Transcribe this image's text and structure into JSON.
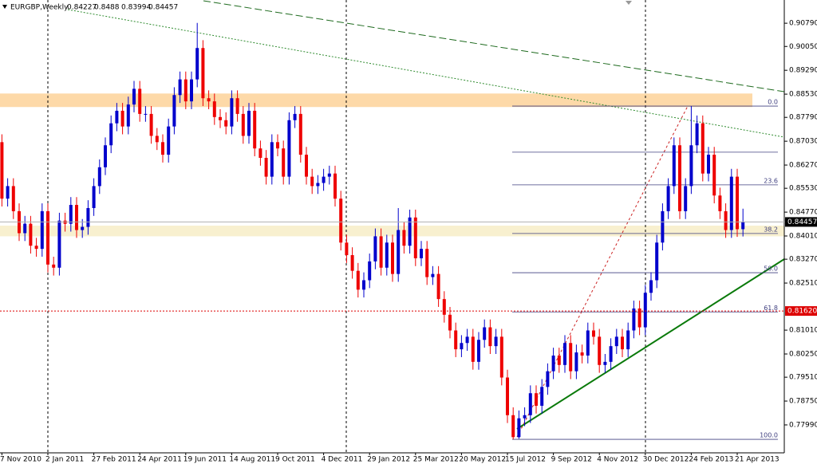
{
  "chart_data": {
    "type": "candlestick",
    "title": "EURGBP,Weekly",
    "categories": [
      "7 Nov 2010",
      null,
      null,
      null,
      null,
      null,
      null,
      null,
      "2 Jan 2011",
      null,
      null,
      null,
      null,
      null,
      null,
      null,
      "27 Feb 2011",
      null,
      null,
      null,
      null,
      null,
      null,
      null,
      "24 Apr 2011",
      null,
      null,
      null,
      null,
      null,
      null,
      null,
      "19 Jun 2011",
      null,
      null,
      null,
      null,
      null,
      null,
      null,
      "14 Aug 2011",
      null,
      null,
      null,
      null,
      null,
      null,
      null,
      "9 Oct 2011",
      null,
      null,
      null,
      null,
      null,
      null,
      null,
      "4 Dec 2011",
      null,
      null,
      null,
      null,
      null,
      null,
      null,
      "29 Jan 2012",
      null,
      null,
      null,
      null,
      null,
      null,
      null,
      "25 Mar 2012",
      null,
      null,
      null,
      null,
      null,
      null,
      null,
      "20 May 2012",
      null,
      null,
      null,
      null,
      null,
      null,
      null,
      "15 Jul 2012",
      null,
      null,
      null,
      null,
      null,
      null,
      null,
      "9 Sep 2012",
      null,
      null,
      null,
      null,
      null,
      null,
      null,
      "4 Nov 2012",
      null,
      null,
      null,
      null,
      null,
      null,
      null,
      "30 Dec 2012",
      null,
      null,
      null,
      null,
      null,
      null,
      null,
      "24 Feb 2013",
      null,
      null,
      null,
      null,
      null,
      null,
      null,
      "21 Apr 2013",
      null
    ],
    "open": [
      0.87,
      0.852,
      0.856,
      0.848,
      0.841,
      0.844,
      0.837,
      0.836,
      0.848,
      0.831,
      0.83,
      0.845,
      0.844,
      0.85,
      0.842,
      0.843,
      0.849,
      0.856,
      0.862,
      0.869,
      0.876,
      0.88,
      0.875,
      0.882,
      0.887,
      0.879,
      0.879,
      0.872,
      0.87,
      0.866,
      0.875,
      0.885,
      0.89,
      0.883,
      0.89,
      0.9,
      0.884,
      0.883,
      0.878,
      0.877,
      0.875,
      0.884,
      0.879,
      0.872,
      0.88,
      0.868,
      0.865,
      0.859,
      0.87,
      0.868,
      0.859,
      0.877,
      0.879,
      0.866,
      0.859,
      0.856,
      0.857,
      0.859,
      0.86,
      0.852,
      0.838,
      0.834,
      0.829,
      0.823,
      0.826,
      0.832,
      0.84,
      0.83,
      0.838,
      0.828,
      0.842,
      0.837,
      0.846,
      0.833,
      0.836,
      0.827,
      0.828,
      0.82,
      0.815,
      0.81,
      0.804,
      0.806,
      0.808,
      0.8,
      0.807,
      0.811,
      0.805,
      0.808,
      0.795,
      0.783,
      0.776,
      0.782,
      0.783,
      0.79,
      0.786,
      0.792,
      0.797,
      0.802,
      0.799,
      0.806,
      0.797,
      0.803,
      0.802,
      0.81,
      0.808,
      0.799,
      0.8,
      0.805,
      0.808,
      0.804,
      0.81,
      0.817,
      0.811,
      0.822,
      0.826,
      0.838,
      0.848,
      0.856,
      0.869,
      0.848,
      0.856,
      0.869,
      0.876,
      0.86,
      0.866,
      0.853,
      0.848,
      0.842,
      0.859,
      0.84227
    ],
    "high": [
      0.8725,
      0.8585,
      0.8585,
      0.8505,
      0.8465,
      0.8465,
      0.8395,
      0.8505,
      0.8505,
      0.8335,
      0.8475,
      0.8475,
      0.8525,
      0.8525,
      0.8455,
      0.8515,
      0.8585,
      0.8645,
      0.8715,
      0.8785,
      0.8825,
      0.8825,
      0.8845,
      0.8895,
      0.8895,
      0.8815,
      0.8815,
      0.8745,
      0.8725,
      0.8775,
      0.8875,
      0.8925,
      0.8925,
      0.8925,
      0.908,
      0.9025,
      0.8865,
      0.8855,
      0.8805,
      0.8795,
      0.8865,
      0.8865,
      0.8815,
      0.8825,
      0.8825,
      0.8705,
      0.8675,
      0.8725,
      0.8725,
      0.8705,
      0.8795,
      0.8815,
      0.8815,
      0.8685,
      0.8615,
      0.8595,
      0.8615,
      0.8625,
      0.8625,
      0.8545,
      0.8405,
      0.8365,
      0.8315,
      0.8285,
      0.8345,
      0.8425,
      0.8425,
      0.8405,
      0.8405,
      0.849,
      0.8445,
      0.8485,
      0.8485,
      0.8385,
      0.8385,
      0.8305,
      0.8305,
      0.8225,
      0.8175,
      0.8125,
      0.8085,
      0.8105,
      0.8105,
      0.8095,
      0.8135,
      0.8135,
      0.8105,
      0.8105,
      0.7975,
      0.7855,
      0.7845,
      0.7855,
      0.7925,
      0.7925,
      0.7945,
      0.7995,
      0.8045,
      0.8045,
      0.8085,
      0.8085,
      0.8055,
      0.8055,
      0.8125,
      0.8125,
      0.8105,
      0.8025,
      0.8075,
      0.8105,
      0.8105,
      0.8125,
      0.8195,
      0.8195,
      0.8245,
      0.8285,
      0.8405,
      0.8505,
      0.8585,
      0.8715,
      0.8715,
      0.8585,
      0.8815,
      0.8785,
      0.8785,
      0.8685,
      0.8685,
      0.8555,
      0.8505,
      0.8615,
      0.8615,
      0.8488
    ],
    "low": [
      0.8495,
      0.8495,
      0.8455,
      0.8385,
      0.8385,
      0.8345,
      0.8335,
      0.8335,
      0.8285,
      0.8275,
      0.8275,
      0.8415,
      0.8415,
      0.8395,
      0.8395,
      0.8405,
      0.8465,
      0.8535,
      0.8595,
      0.8665,
      0.8735,
      0.8725,
      0.8725,
      0.8795,
      0.8765,
      0.8765,
      0.8695,
      0.8675,
      0.8635,
      0.8635,
      0.8725,
      0.8825,
      0.8805,
      0.8805,
      0.8875,
      0.8815,
      0.8805,
      0.8755,
      0.8745,
      0.8725,
      0.8725,
      0.8765,
      0.8695,
      0.8695,
      0.8655,
      0.8625,
      0.8565,
      0.8565,
      0.8655,
      0.8565,
      0.8565,
      0.8745,
      0.8635,
      0.8565,
      0.8535,
      0.8535,
      0.8545,
      0.8565,
      0.8495,
      0.8355,
      0.8315,
      0.8265,
      0.8205,
      0.8205,
      0.8235,
      0.8295,
      0.8275,
      0.8275,
      0.8255,
      0.8255,
      0.8345,
      0.8345,
      0.8305,
      0.8305,
      0.8245,
      0.8245,
      0.8175,
      0.8125,
      0.8075,
      0.8015,
      0.8015,
      0.8035,
      0.7975,
      0.7975,
      0.8045,
      0.8025,
      0.8025,
      0.7925,
      0.7805,
      0.7753,
      0.7755,
      0.7795,
      0.7805,
      0.7835,
      0.7835,
      0.7895,
      0.7945,
      0.7965,
      0.7965,
      0.7945,
      0.7945,
      0.7995,
      0.7995,
      0.8055,
      0.7965,
      0.7965,
      0.7975,
      0.8025,
      0.8015,
      0.8015,
      0.8075,
      0.8085,
      0.8085,
      0.8195,
      0.8235,
      0.8355,
      0.8455,
      0.8535,
      0.8455,
      0.8455,
      0.8535,
      0.8665,
      0.8575,
      0.8575,
      0.8505,
      0.8455,
      0.8395,
      0.8395,
      0.8398,
      0.83994
    ],
    "close": [
      0.852,
      0.856,
      0.848,
      0.841,
      0.844,
      0.837,
      0.836,
      0.848,
      0.831,
      0.83,
      0.845,
      0.844,
      0.85,
      0.842,
      0.843,
      0.849,
      0.856,
      0.862,
      0.869,
      0.876,
      0.88,
      0.875,
      0.882,
      0.887,
      0.879,
      0.879,
      0.872,
      0.87,
      0.866,
      0.875,
      0.885,
      0.89,
      0.883,
      0.89,
      0.9,
      0.884,
      0.883,
      0.878,
      0.877,
      0.875,
      0.884,
      0.879,
      0.872,
      0.88,
      0.868,
      0.865,
      0.859,
      0.87,
      0.868,
      0.859,
      0.877,
      0.879,
      0.866,
      0.859,
      0.856,
      0.857,
      0.859,
      0.86,
      0.852,
      0.838,
      0.834,
      0.829,
      0.823,
      0.826,
      0.832,
      0.84,
      0.83,
      0.838,
      0.828,
      0.842,
      0.837,
      0.846,
      0.833,
      0.836,
      0.827,
      0.828,
      0.82,
      0.815,
      0.81,
      0.804,
      0.806,
      0.808,
      0.8,
      0.807,
      0.811,
      0.805,
      0.808,
      0.795,
      0.783,
      0.776,
      0.782,
      0.783,
      0.79,
      0.786,
      0.792,
      0.797,
      0.802,
      0.799,
      0.806,
      0.797,
      0.803,
      0.802,
      0.81,
      0.808,
      0.799,
      0.8,
      0.805,
      0.808,
      0.804,
      0.81,
      0.817,
      0.811,
      0.822,
      0.826,
      0.838,
      0.848,
      0.856,
      0.869,
      0.848,
      0.856,
      0.869,
      0.876,
      0.86,
      0.866,
      0.853,
      0.848,
      0.842,
      0.859,
      0.84227,
      0.84457
    ],
    "up_color": "#0000cc",
    "down_color": "#ee0000",
    "ylim": [
      0.771,
      0.9153
    ],
    "yticks": [
      {
        "value": 0.9079,
        "label": "0.90790"
      },
      {
        "value": 0.9005,
        "label": "0.90050"
      },
      {
        "value": 0.8929,
        "label": "0.89290"
      },
      {
        "value": 0.8853,
        "label": "0.88530"
      },
      {
        "value": 0.8779,
        "label": "0.87790"
      },
      {
        "value": 0.8703,
        "label": "0.87030"
      },
      {
        "value": 0.8627,
        "label": "0.86270"
      },
      {
        "value": 0.8553,
        "label": "0.85530"
      },
      {
        "value": 0.8477,
        "label": "0.84770"
      },
      {
        "value": 0.8401,
        "label": "0.84010"
      },
      {
        "value": 0.8327,
        "label": "0.83270"
      },
      {
        "value": 0.8251,
        "label": "0.82510"
      },
      {
        "value": 0.8101,
        "label": "0.81010"
      },
      {
        "value": 0.8025,
        "label": "0.80250"
      },
      {
        "value": 0.7951,
        "label": "0.79510"
      },
      {
        "value": 0.7875,
        "label": "0.78750"
      },
      {
        "value": 0.7799,
        "label": "0.77990"
      }
    ],
    "level_line": {
      "value": 0.8162,
      "label": "0.81620",
      "color": "#dd0000"
    },
    "zones": [
      {
        "from": 0.8812,
        "to": 0.8855,
        "color": "#fdd9a8"
      },
      {
        "from": 0.84,
        "to": 0.8434,
        "color": "#f8f0cf"
      }
    ],
    "fib": {
      "color": "#404080",
      "levels": [
        {
          "value": 0.8815,
          "label": "0.0"
        },
        {
          "value": 0.8668
        },
        {
          "value": 0.8564,
          "label": "23.6"
        },
        {
          "value": 0.8409,
          "label": "38.2"
        },
        {
          "value": 0.8284,
          "label": "50.0"
        },
        {
          "value": 0.8159,
          "label": "61.8"
        },
        {
          "value": 0.7753,
          "label": "100.0"
        }
      ]
    }
  }
}
